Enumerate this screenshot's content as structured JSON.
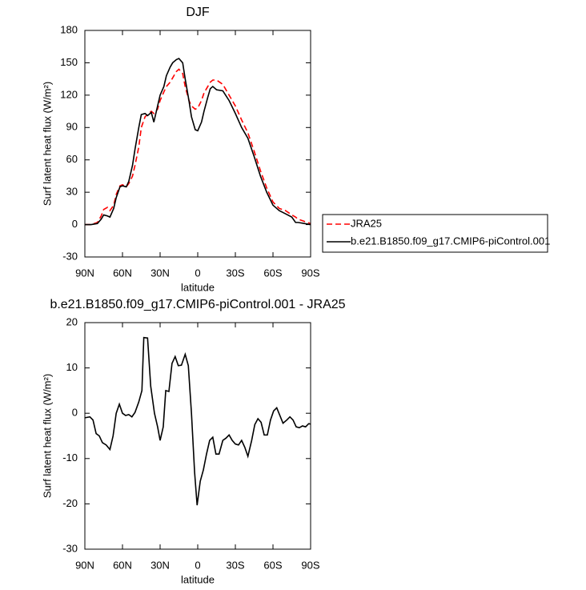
{
  "chart_data": [
    {
      "type": "line",
      "title": "DJF",
      "xlabel": "latitude",
      "ylabel": "Surf latent heat flux (W/m²)",
      "x": [
        90,
        85,
        80,
        77,
        75,
        72,
        70,
        67,
        65,
        62,
        60,
        57,
        55,
        52,
        50,
        47,
        45,
        42,
        40,
        37,
        35,
        32,
        30,
        27,
        25,
        22,
        20,
        17,
        15,
        12,
        10,
        7,
        5,
        2,
        0,
        -3,
        -5,
        -8,
        -10,
        -12,
        -15,
        -20,
        -25,
        -30,
        -35,
        -40,
        -45,
        -50,
        -55,
        -60,
        -65,
        -70,
        -75,
        -78,
        -80,
        -85,
        -90
      ],
      "series": [
        {
          "name": "JRA25",
          "color": "#ff0000",
          "line_style": "dashed",
          "values": [
            0,
            0,
            2,
            8,
            14,
            16,
            13,
            18,
            28,
            36,
            37,
            35,
            38,
            45,
            55,
            72,
            90,
            100,
            102,
            105,
            103,
            107,
            115,
            123,
            128,
            132,
            136,
            142,
            144,
            140,
            128,
            115,
            110,
            107,
            108,
            115,
            122,
            128,
            132,
            134,
            134,
            130,
            120,
            110,
            97,
            85,
            68,
            50,
            34,
            21,
            15,
            13,
            9,
            7,
            5,
            3,
            1
          ]
        },
        {
          "name": "b.e21.B1850.f09_g17.CMIP6-piControl.001",
          "color": "#000000",
          "line_style": "solid",
          "values": [
            0,
            0,
            1,
            5,
            9,
            8,
            7,
            15,
            25,
            35,
            36,
            35,
            40,
            55,
            70,
            90,
            102,
            103,
            101,
            104,
            95,
            110,
            120,
            128,
            138,
            146,
            150,
            153,
            154,
            150,
            135,
            115,
            100,
            88,
            87,
            95,
            105,
            118,
            126,
            128,
            125,
            124,
            115,
            103,
            90,
            80,
            63,
            45,
            30,
            18,
            13,
            10,
            7,
            2,
            2,
            1,
            0
          ]
        }
      ],
      "xlim": [
        90,
        -90
      ],
      "xticks": [
        {
          "value": 90,
          "label": "90N"
        },
        {
          "value": 60,
          "label": "60N"
        },
        {
          "value": 30,
          "label": "30N"
        },
        0,
        {
          "value": -30,
          "label": "30S"
        },
        {
          "value": -60,
          "label": "60S"
        },
        {
          "value": -90,
          "label": "90S"
        }
      ],
      "ylim": [
        -30,
        180
      ],
      "yticks": [
        -30,
        0,
        30,
        60,
        90,
        120,
        150,
        180
      ],
      "legend": "outside right"
    },
    {
      "type": "line",
      "title": "b.e21.B1850.f09_g17.CMIP6-piControl.001 - JRA25",
      "xlabel": "latitude",
      "ylabel": "Surf latent heat flux (W/m²)",
      "x": [
        90,
        86,
        83.5,
        81,
        78.5,
        76,
        73,
        70,
        67.5,
        65,
        62.5,
        60,
        57.5,
        55,
        52.5,
        50,
        47,
        44.5,
        43,
        40,
        37.5,
        34.5,
        32,
        30,
        27.5,
        25.5,
        23,
        20.5,
        18,
        15.5,
        13,
        10,
        7.5,
        5,
        2.5,
        0.5,
        -2,
        -4.5,
        -7,
        -9.5,
        -12,
        -14.5,
        -17,
        -20,
        -22.5,
        -25,
        -27.5,
        -30,
        -32.5,
        -35,
        -37.5,
        -40,
        -43,
        -45.5,
        -48,
        -50.5,
        -53,
        -55.5,
        -58,
        -60.5,
        -63,
        -65.5,
        -68,
        -71,
        -73.5,
        -76,
        -78.5,
        -81,
        -83.5,
        -86,
        -88.5,
        -90
      ],
      "series": [
        {
          "color": "#000000",
          "line_style": "solid",
          "values": [
            -1,
            -0.8,
            -1.5,
            -4.5,
            -5,
            -6.5,
            -7,
            -8,
            -5,
            0,
            2,
            0,
            -0.5,
            -0.3,
            -0.8,
            0.2,
            2.5,
            5,
            16.7,
            16.6,
            6,
            0,
            -3,
            -6,
            -3,
            5,
            4.8,
            11,
            12.5,
            10.5,
            10.6,
            13,
            10.5,
            0,
            -13,
            -20.3,
            -15,
            -12.5,
            -9,
            -6,
            -5.3,
            -9,
            -9,
            -6,
            -5.5,
            -4.8,
            -6,
            -6.8,
            -7,
            -6,
            -7.5,
            -9.5,
            -6,
            -2.5,
            -1.2,
            -2,
            -4.8,
            -4.8,
            -1.5,
            0.5,
            1.2,
            -0.5,
            -2.2,
            -1.5,
            -0.8,
            -1.5,
            -3,
            -3.2,
            -2.8,
            -3,
            -2.3,
            -2.4
          ]
        }
      ],
      "xlim": [
        90,
        -90
      ],
      "xticks": [
        {
          "value": 90,
          "label": "90N"
        },
        {
          "value": 60,
          "label": "60N"
        },
        {
          "value": 30,
          "label": "30N"
        },
        0,
        {
          "value": -30,
          "label": "30S"
        },
        {
          "value": -60,
          "label": "60S"
        },
        {
          "value": -90,
          "label": "90S"
        }
      ],
      "ylim": [
        -30,
        20
      ],
      "yticks": [
        -30,
        -20,
        -10,
        0,
        10,
        20
      ]
    }
  ]
}
